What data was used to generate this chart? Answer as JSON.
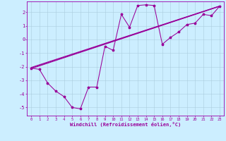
{
  "xlabel": "Windchill (Refroidissement éolien,°C)",
  "bg_color": "#cceeff",
  "grid_color": "#aaccdd",
  "line_color": "#990099",
  "spine_color": "#9900aa",
  "xlim": [
    -0.5,
    23.5
  ],
  "ylim": [
    -5.6,
    2.8
  ],
  "xticks": [
    0,
    1,
    2,
    3,
    4,
    5,
    6,
    7,
    8,
    9,
    10,
    11,
    12,
    13,
    14,
    15,
    16,
    17,
    18,
    19,
    20,
    21,
    22,
    23
  ],
  "yticks": [
    -5,
    -4,
    -3,
    -2,
    -1,
    0,
    1,
    2
  ],
  "series": [
    [
      0,
      -2.1
    ],
    [
      1,
      -2.2
    ],
    [
      2,
      -3.2
    ],
    [
      3,
      -3.8
    ],
    [
      4,
      -4.2
    ],
    [
      5,
      -5.0
    ],
    [
      6,
      -5.1
    ],
    [
      7,
      -3.5
    ],
    [
      8,
      -3.5
    ],
    [
      9,
      -0.5
    ],
    [
      10,
      -0.8
    ],
    [
      11,
      1.85
    ],
    [
      12,
      0.9
    ],
    [
      13,
      2.5
    ],
    [
      14,
      2.55
    ],
    [
      15,
      2.5
    ],
    [
      16,
      -0.35
    ],
    [
      17,
      0.15
    ],
    [
      18,
      0.55
    ],
    [
      19,
      1.1
    ],
    [
      20,
      1.2
    ],
    [
      21,
      1.85
    ],
    [
      22,
      1.75
    ],
    [
      23,
      2.45
    ]
  ],
  "straight_lines": [
    [
      [
        0,
        -2.1
      ],
      [
        23,
        2.45
      ]
    ],
    [
      [
        0,
        -2.1
      ],
      [
        23,
        2.45
      ]
    ],
    [
      [
        0,
        -2.1
      ],
      [
        23,
        2.45
      ]
    ]
  ]
}
